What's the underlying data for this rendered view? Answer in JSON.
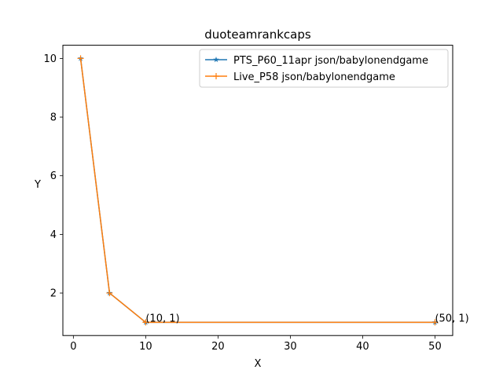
{
  "chart_data": {
    "type": "line",
    "title": "duoteamrankcaps",
    "xlabel": "X",
    "ylabel": "Y",
    "xlim": [
      -1.45,
      52.45
    ],
    "ylim": [
      0.55,
      10.45
    ],
    "xticks": [
      0,
      10,
      20,
      30,
      40,
      50
    ],
    "yticks": [
      2,
      4,
      6,
      8,
      10
    ],
    "grid": false,
    "legend_position": "upper right",
    "series": [
      {
        "name": "PTS_P60_11apr json/babylonendgame",
        "color": "#1f77b4",
        "marker": "star",
        "x": [
          1,
          5,
          10,
          50
        ],
        "y": [
          10,
          2,
          1,
          1
        ]
      },
      {
        "name": "Live_P58 json/babylonendgame",
        "color": "#ff7f0e",
        "marker": "plus",
        "x": [
          1,
          5,
          10,
          50
        ],
        "y": [
          10,
          2,
          1,
          1
        ]
      }
    ],
    "annotations": [
      {
        "text": "(10, 1)",
        "x": 10,
        "y": 1
      },
      {
        "text": "(50, 1)",
        "x": 50,
        "y": 1
      }
    ]
  }
}
